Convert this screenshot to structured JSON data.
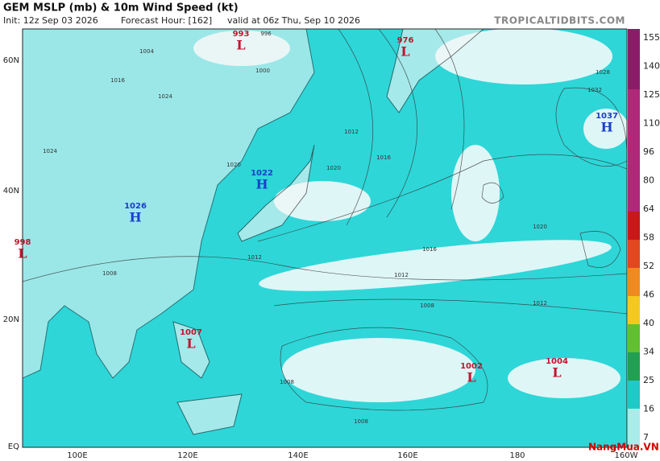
{
  "header": {
    "title": "GEM MSLP (mb) & 10m Wind Speed (kt)",
    "init": "Init: 12z Sep 03 2026",
    "forecast_hour": "Forecast Hour: [162]",
    "valid": "valid at 06z Thu, Sep 10 2026",
    "site": "TROPICALTIDBITS.COM"
  },
  "map": {
    "lat_labels": [
      "60N",
      "40N",
      "20N",
      "EQ"
    ],
    "lon_labels": [
      "100E",
      "120E",
      "140E",
      "160E",
      "180",
      "160W"
    ],
    "centers": [
      {
        "value": "993",
        "kind": "L"
      },
      {
        "value": "976",
        "kind": "L"
      },
      {
        "value": "1037",
        "kind": "H"
      },
      {
        "value": "1022",
        "kind": "H"
      },
      {
        "value": "1026",
        "kind": "H"
      },
      {
        "value": "998",
        "kind": "L"
      },
      {
        "value": "1007",
        "kind": "L"
      },
      {
        "value": "1002",
        "kind": "L"
      },
      {
        "value": "1004",
        "kind": "L"
      }
    ],
    "isobar_labels": [
      "1004",
      "1000",
      "996",
      "1016",
      "1020",
      "1012",
      "1008",
      "1024",
      "1028",
      "1032",
      "1016",
      "1012",
      "1008",
      "1020",
      "1016",
      "1012",
      "1008",
      "1008",
      "1012",
      "1020",
      "1024"
    ]
  },
  "colorbar": {
    "labels": [
      "155",
      "140",
      "125",
      "110",
      "96",
      "80",
      "64",
      "58",
      "52",
      "46",
      "40",
      "34",
      "25",
      "16",
      "7"
    ]
  },
  "watermark": "NangMua.VN"
}
